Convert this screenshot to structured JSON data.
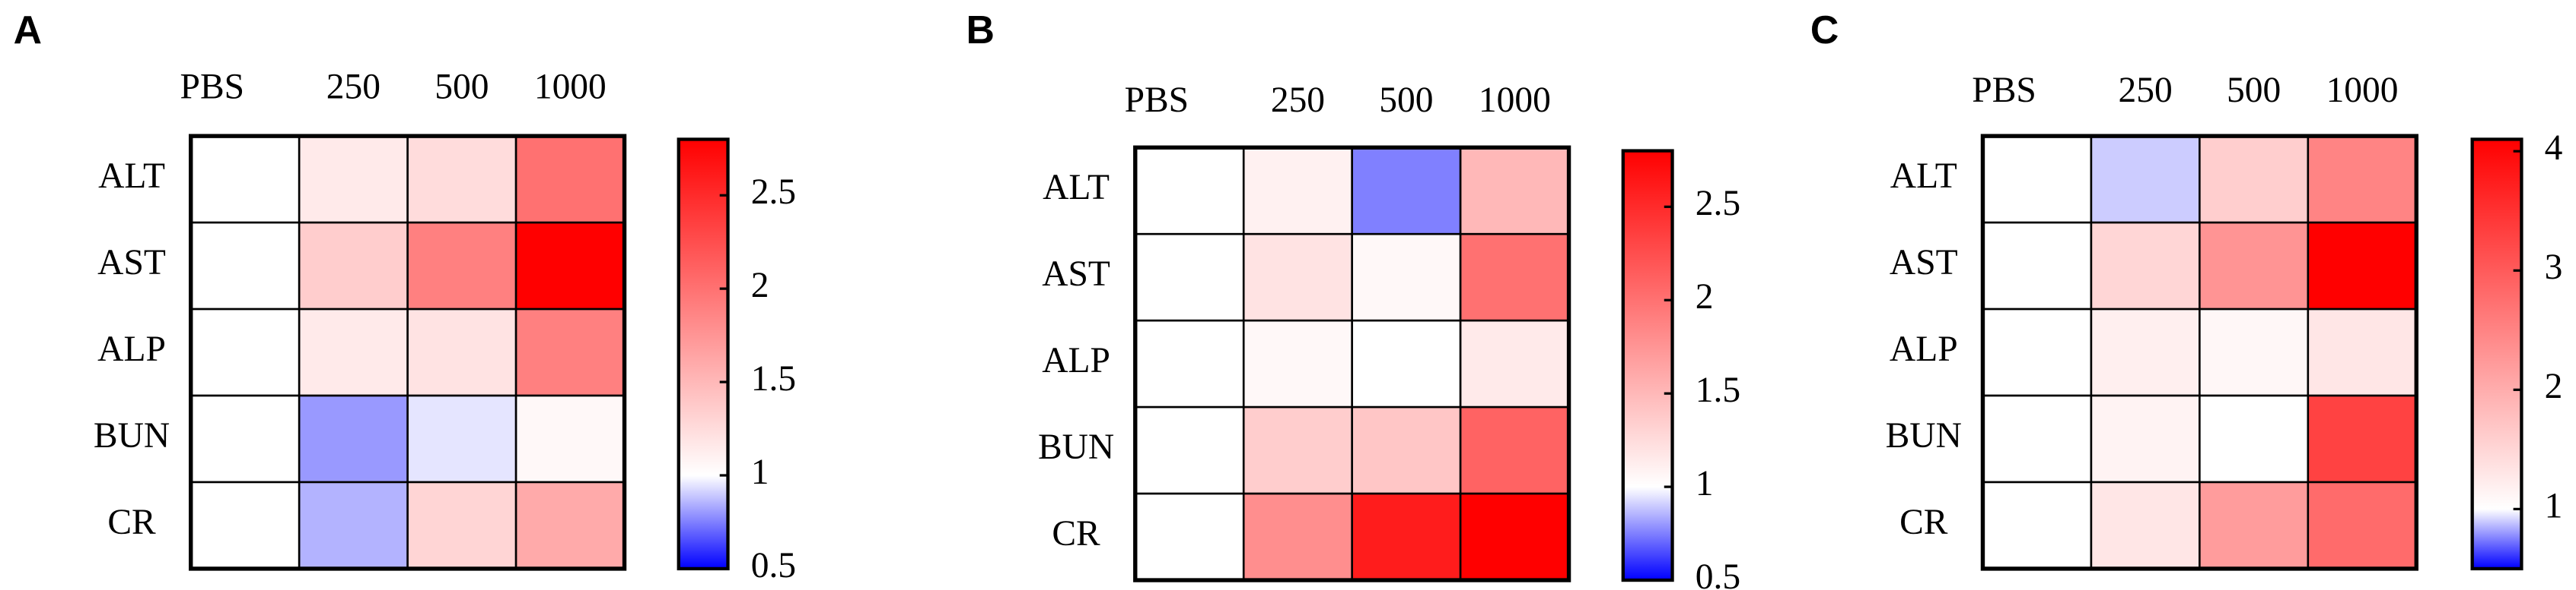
{
  "chart_data": [
    {
      "type": "heatmap",
      "title": "A",
      "categories": [
        "PBS",
        "250",
        "500",
        "1000"
      ],
      "rows": [
        "ALT",
        "AST",
        "ALP",
        "BUN",
        "CR"
      ],
      "values": [
        [
          1,
          1.15,
          1.25,
          2.0
        ],
        [
          1,
          1.35,
          1.9,
          2.8
        ],
        [
          1,
          1.15,
          1.2,
          1.9
        ],
        [
          1,
          0.8,
          0.95,
          1.05
        ],
        [
          1,
          0.85,
          1.3,
          1.6
        ]
      ],
      "zlim": [
        0.5,
        2.8
      ],
      "zcenter": 1,
      "zticks": [
        0.5,
        1,
        1.5,
        2,
        2.5
      ],
      "colors": [
        "#0000ff",
        "#ffffff",
        "#ff0000"
      ]
    },
    {
      "type": "heatmap",
      "title": "B",
      "categories": [
        "PBS",
        "250",
        "500",
        "1000"
      ],
      "rows": [
        "ALT",
        "AST",
        "ALP",
        "BUN",
        "CR"
      ],
      "values": [
        [
          1,
          1.1,
          0.75,
          1.5
        ],
        [
          1,
          1.2,
          1.05,
          2.0
        ],
        [
          1,
          1.05,
          1.0,
          1.15
        ],
        [
          1,
          1.35,
          1.4,
          2.1
        ],
        [
          1,
          1.8,
          2.6,
          2.8
        ]
      ],
      "zlim": [
        0.5,
        2.8
      ],
      "zcenter": 1,
      "zticks": [
        0.5,
        1,
        1.5,
        2,
        2.5
      ],
      "colors": [
        "#0000ff",
        "#ffffff",
        "#ff0000"
      ]
    },
    {
      "type": "heatmap",
      "title": "C",
      "categories": [
        "PBS",
        "250",
        "500",
        "1000"
      ],
      "rows": [
        "ALT",
        "AST",
        "ALP",
        "BUN",
        "CR"
      ],
      "values": [
        [
          1,
          0.9,
          1.6,
          2.5
        ],
        [
          1,
          1.5,
          2.3,
          4.1
        ],
        [
          1,
          1.2,
          1.1,
          1.3
        ],
        [
          1,
          1.15,
          1.0,
          3.3
        ],
        [
          1,
          1.3,
          2.2,
          2.8
        ]
      ],
      "zlim": [
        0.5,
        4.1
      ],
      "zcenter": 1,
      "zticks": [
        1,
        2,
        3,
        4
      ],
      "colors": [
        "#0000ff",
        "#ffffff",
        "#ff0000"
      ]
    }
  ]
}
